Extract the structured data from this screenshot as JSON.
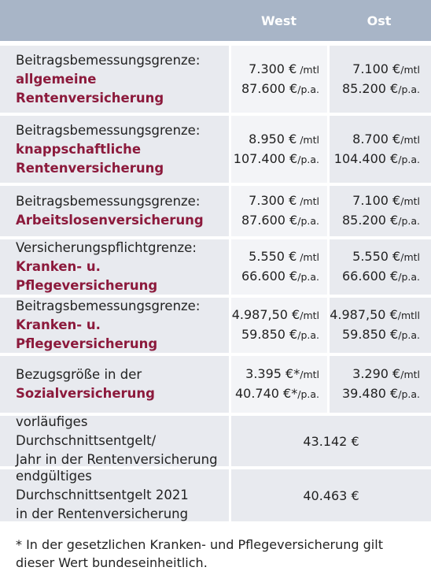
{
  "header": {
    "west": "West",
    "ost": "Ost"
  },
  "rows": [
    {
      "label": [
        "Beitragsbemessungsgrenze:"
      ],
      "highlight": [
        "allgemeine",
        "Rentenversicherung"
      ],
      "west": [
        {
          "amount": "7.300 €",
          "unit": " /mtl"
        },
        {
          "amount": "87.600 €",
          "unit": "/p.a."
        }
      ],
      "ost": [
        {
          "amount": "7.100 €",
          "unit": "/mtl"
        },
        {
          "amount": "85.200 €",
          "unit": "/p.a."
        }
      ]
    },
    {
      "label": [
        "Beitragsbemessungsgrenze:"
      ],
      "highlight": [
        "knappschaftliche",
        "Rentenversicherung"
      ],
      "west": [
        {
          "amount": "8.950 €",
          "unit": " /mtl"
        },
        {
          "amount": "107.400 €",
          "unit": "/p.a."
        }
      ],
      "ost": [
        {
          "amount": "8.700 €",
          "unit": "/mtl"
        },
        {
          "amount": "104.400 €",
          "unit": "/p.a."
        }
      ]
    },
    {
      "label": [
        "Beitragsbemessungsgrenze:"
      ],
      "highlight": [
        "Arbeitslosenversicherung"
      ],
      "west": [
        {
          "amount": "7.300 €",
          "unit": " /mtl"
        },
        {
          "amount": "87.600 €",
          "unit": "/p.a."
        }
      ],
      "ost": [
        {
          "amount": "7.100 €",
          "unit": "/mtl"
        },
        {
          "amount": "85.200 €",
          "unit": "/p.a."
        }
      ]
    },
    {
      "label": [
        "Versicherungspflichtgrenze:"
      ],
      "highlight": [
        "Kranken- u. Pflegeversicherung"
      ],
      "west": [
        {
          "amount": "5.550 €",
          "unit": " /mtl"
        },
        {
          "amount": "66.600 €",
          "unit": "/p.a."
        }
      ],
      "ost": [
        {
          "amount": "5.550 €",
          "unit": "/mtl"
        },
        {
          "amount": "66.600 €",
          "unit": "/p.a."
        }
      ]
    },
    {
      "label": [
        "Beitragsbemessungsgrenze:"
      ],
      "highlight": [
        "Kranken- u. Pflegeversicherung"
      ],
      "west": [
        {
          "amount": "4.987,50 €",
          "unit": "/mtl"
        },
        {
          "amount": "59.850 €",
          "unit": "/p.a."
        }
      ],
      "ost": [
        {
          "amount": "4.987,50 €",
          "unit": "/mtll"
        },
        {
          "amount": "59.850 €",
          "unit": "/p.a."
        }
      ]
    },
    {
      "label": [
        "Bezugsgröße in der"
      ],
      "highlight": [
        "Sozialversicherung"
      ],
      "west": [
        {
          "amount": "3.395 €*",
          "unit": "/mtl"
        },
        {
          "amount": "40.740 €*",
          "unit": "/p.a."
        }
      ],
      "ost": [
        {
          "amount": "3.290 €",
          "unit": "/mtl"
        },
        {
          "amount": "39.480 €",
          "unit": "/p.a."
        }
      ]
    },
    {
      "label": [
        "vorläufiges Durchschnittsentgelt/",
        "Jahr in der Rentenversicherung"
      ],
      "value": "43.142 €"
    },
    {
      "label": [
        "endgültiges Durchschnittsentgelt 2021",
        "in der Rentenversicherung"
      ],
      "value": "40.463 €"
    }
  ],
  "footnote": [
    "* In der gesetzlichen Kranken- und Pflegeversicherung gilt",
    "dieser Wert bundeseinheitlich."
  ]
}
